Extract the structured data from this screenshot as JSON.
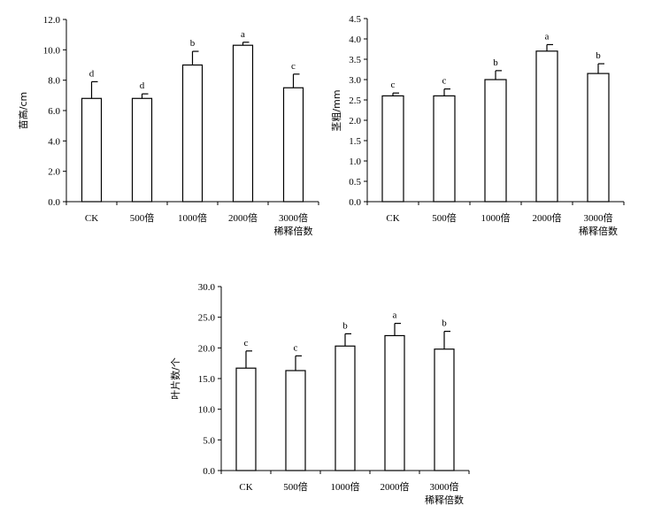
{
  "chart_data": [
    {
      "type": "bar",
      "ylabel": "苗高/cm",
      "xlabel": "稀释倍数",
      "categories": [
        "CK",
        "500倍",
        "1000倍",
        "2000倍",
        "3000倍"
      ],
      "values": [
        6.8,
        6.8,
        9.0,
        10.3,
        7.5
      ],
      "errors": [
        1.1,
        0.3,
        0.9,
        0.2,
        0.9
      ],
      "significance": [
        "d",
        "d",
        "b",
        "a",
        "c"
      ],
      "ylim": [
        0,
        12
      ],
      "yticks": [
        "0.0",
        "2.0",
        "4.0",
        "6.0",
        "8.0",
        "10.0",
        "12.0"
      ]
    },
    {
      "type": "bar",
      "ylabel": "茎粗/mm",
      "xlabel": "稀释倍数",
      "categories": [
        "CK",
        "500倍",
        "1000倍",
        "2000倍",
        "3000倍"
      ],
      "values": [
        2.6,
        2.6,
        3.0,
        3.7,
        3.15
      ],
      "errors": [
        0.07,
        0.17,
        0.22,
        0.16,
        0.24
      ],
      "significance": [
        "c",
        "c",
        "b",
        "a",
        "b"
      ],
      "ylim": [
        0,
        4.5
      ],
      "yticks": [
        "0.0",
        "0.5",
        "1.0",
        "1.5",
        "2.0",
        "2.5",
        "3.0",
        "3.5",
        "4.0",
        "4.5"
      ]
    },
    {
      "type": "bar",
      "ylabel": "叶片数/个",
      "xlabel": "稀释倍数",
      "categories": [
        "CK",
        "500倍",
        "1000倍",
        "2000倍",
        "3000倍"
      ],
      "values": [
        16.7,
        16.3,
        20.3,
        22.0,
        19.8
      ],
      "errors": [
        2.8,
        2.4,
        2.0,
        2.0,
        2.9
      ],
      "significance": [
        "c",
        "c",
        "b",
        "a",
        "b"
      ],
      "ylim": [
        0,
        30
      ],
      "yticks": [
        "0.0",
        "5.0",
        "10.0",
        "15.0",
        "20.0",
        "25.0",
        "30.0"
      ]
    }
  ]
}
